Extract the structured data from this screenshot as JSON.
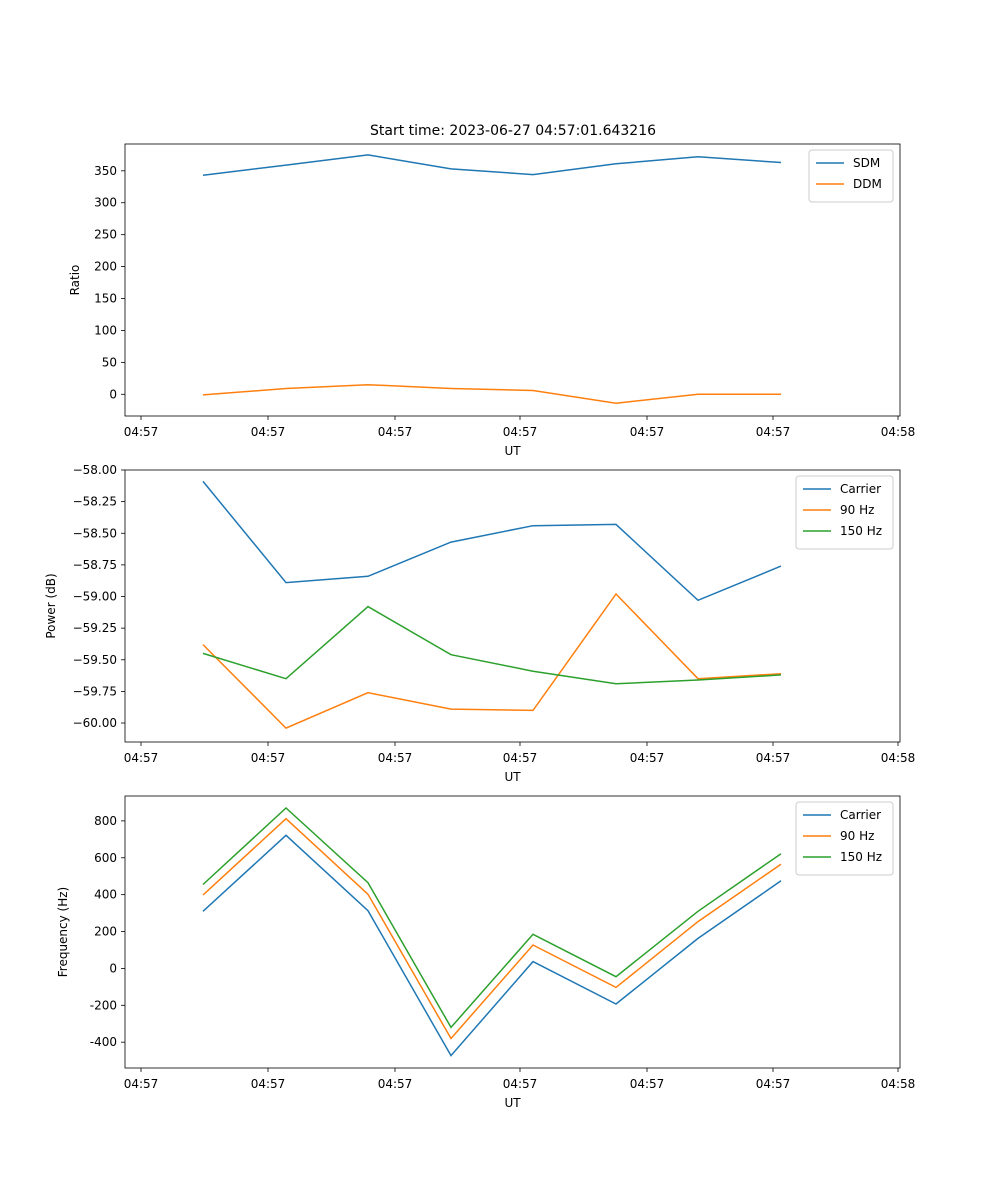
{
  "title": "Start time: 2023-06-27 04:57:01.643216",
  "chart_data": [
    {
      "type": "line",
      "ylabel": "Ratio",
      "xlabel": "UT",
      "x_tick_labels": [
        "04:57",
        "04:57",
        "04:57",
        "04:57",
        "04:57",
        "04:57",
        "04:58"
      ],
      "y_ticks": [
        0,
        50,
        100,
        150,
        200,
        250,
        300,
        350
      ],
      "ylim": [
        -34,
        392
      ],
      "legend_position": "top-right",
      "series": [
        {
          "name": "SDM",
          "color": "#1f77b4",
          "values": [
            343,
            359,
            375,
            353,
            344,
            361,
            372,
            363
          ]
        },
        {
          "name": "DDM",
          "color": "#ff7f0e",
          "values": [
            -1,
            9,
            15,
            9,
            6,
            -14,
            0,
            0
          ]
        }
      ]
    },
    {
      "type": "line",
      "ylabel": "Power (dB)",
      "xlabel": "UT",
      "x_tick_labels": [
        "04:57",
        "04:57",
        "04:57",
        "04:57",
        "04:57",
        "04:57",
        "04:58"
      ],
      "y_ticks": [
        "−58.00",
        "−58.25",
        "−58.50",
        "−58.75",
        "−59.00",
        "−59.25",
        "−59.50",
        "−59.75",
        "−60.00"
      ],
      "ylim": [
        -60.15,
        -58.0
      ],
      "legend_position": "top-right",
      "series": [
        {
          "name": "Carrier",
          "color": "#1f77b4",
          "values": [
            -58.09,
            -58.89,
            -58.84,
            -58.57,
            -58.44,
            -58.43,
            -59.03,
            -58.76
          ]
        },
        {
          "name": "90 Hz",
          "color": "#ff7f0e",
          "values": [
            -59.38,
            -60.04,
            -59.76,
            -59.89,
            -59.9,
            -58.98,
            -59.65,
            -59.61
          ]
        },
        {
          "name": "150 Hz",
          "color": "#2ca02c",
          "values": [
            -59.45,
            -59.65,
            -59.08,
            -59.46,
            -59.59,
            -59.69,
            -59.66,
            -59.62
          ]
        }
      ]
    },
    {
      "type": "line",
      "ylabel": "Frequency (Hz)",
      "xlabel": "UT",
      "x_tick_labels": [
        "04:57",
        "04:57",
        "04:57",
        "04:57",
        "04:57",
        "04:57",
        "04:58"
      ],
      "y_ticks": [
        -400,
        -200,
        0,
        200,
        400,
        600,
        800
      ],
      "ylim": [
        -540,
        935
      ],
      "legend_position": "top-right",
      "series": [
        {
          "name": "Carrier",
          "color": "#1f77b4",
          "values": [
            310,
            722,
            313,
            -473,
            37,
            -193,
            163,
            475
          ]
        },
        {
          "name": "90 Hz",
          "color": "#ff7f0e",
          "values": [
            398,
            812,
            402,
            -380,
            127,
            -103,
            254,
            565
          ]
        },
        {
          "name": "150 Hz",
          "color": "#2ca02c",
          "values": [
            455,
            870,
            465,
            -320,
            185,
            -45,
            310,
            622
          ]
        }
      ]
    }
  ]
}
